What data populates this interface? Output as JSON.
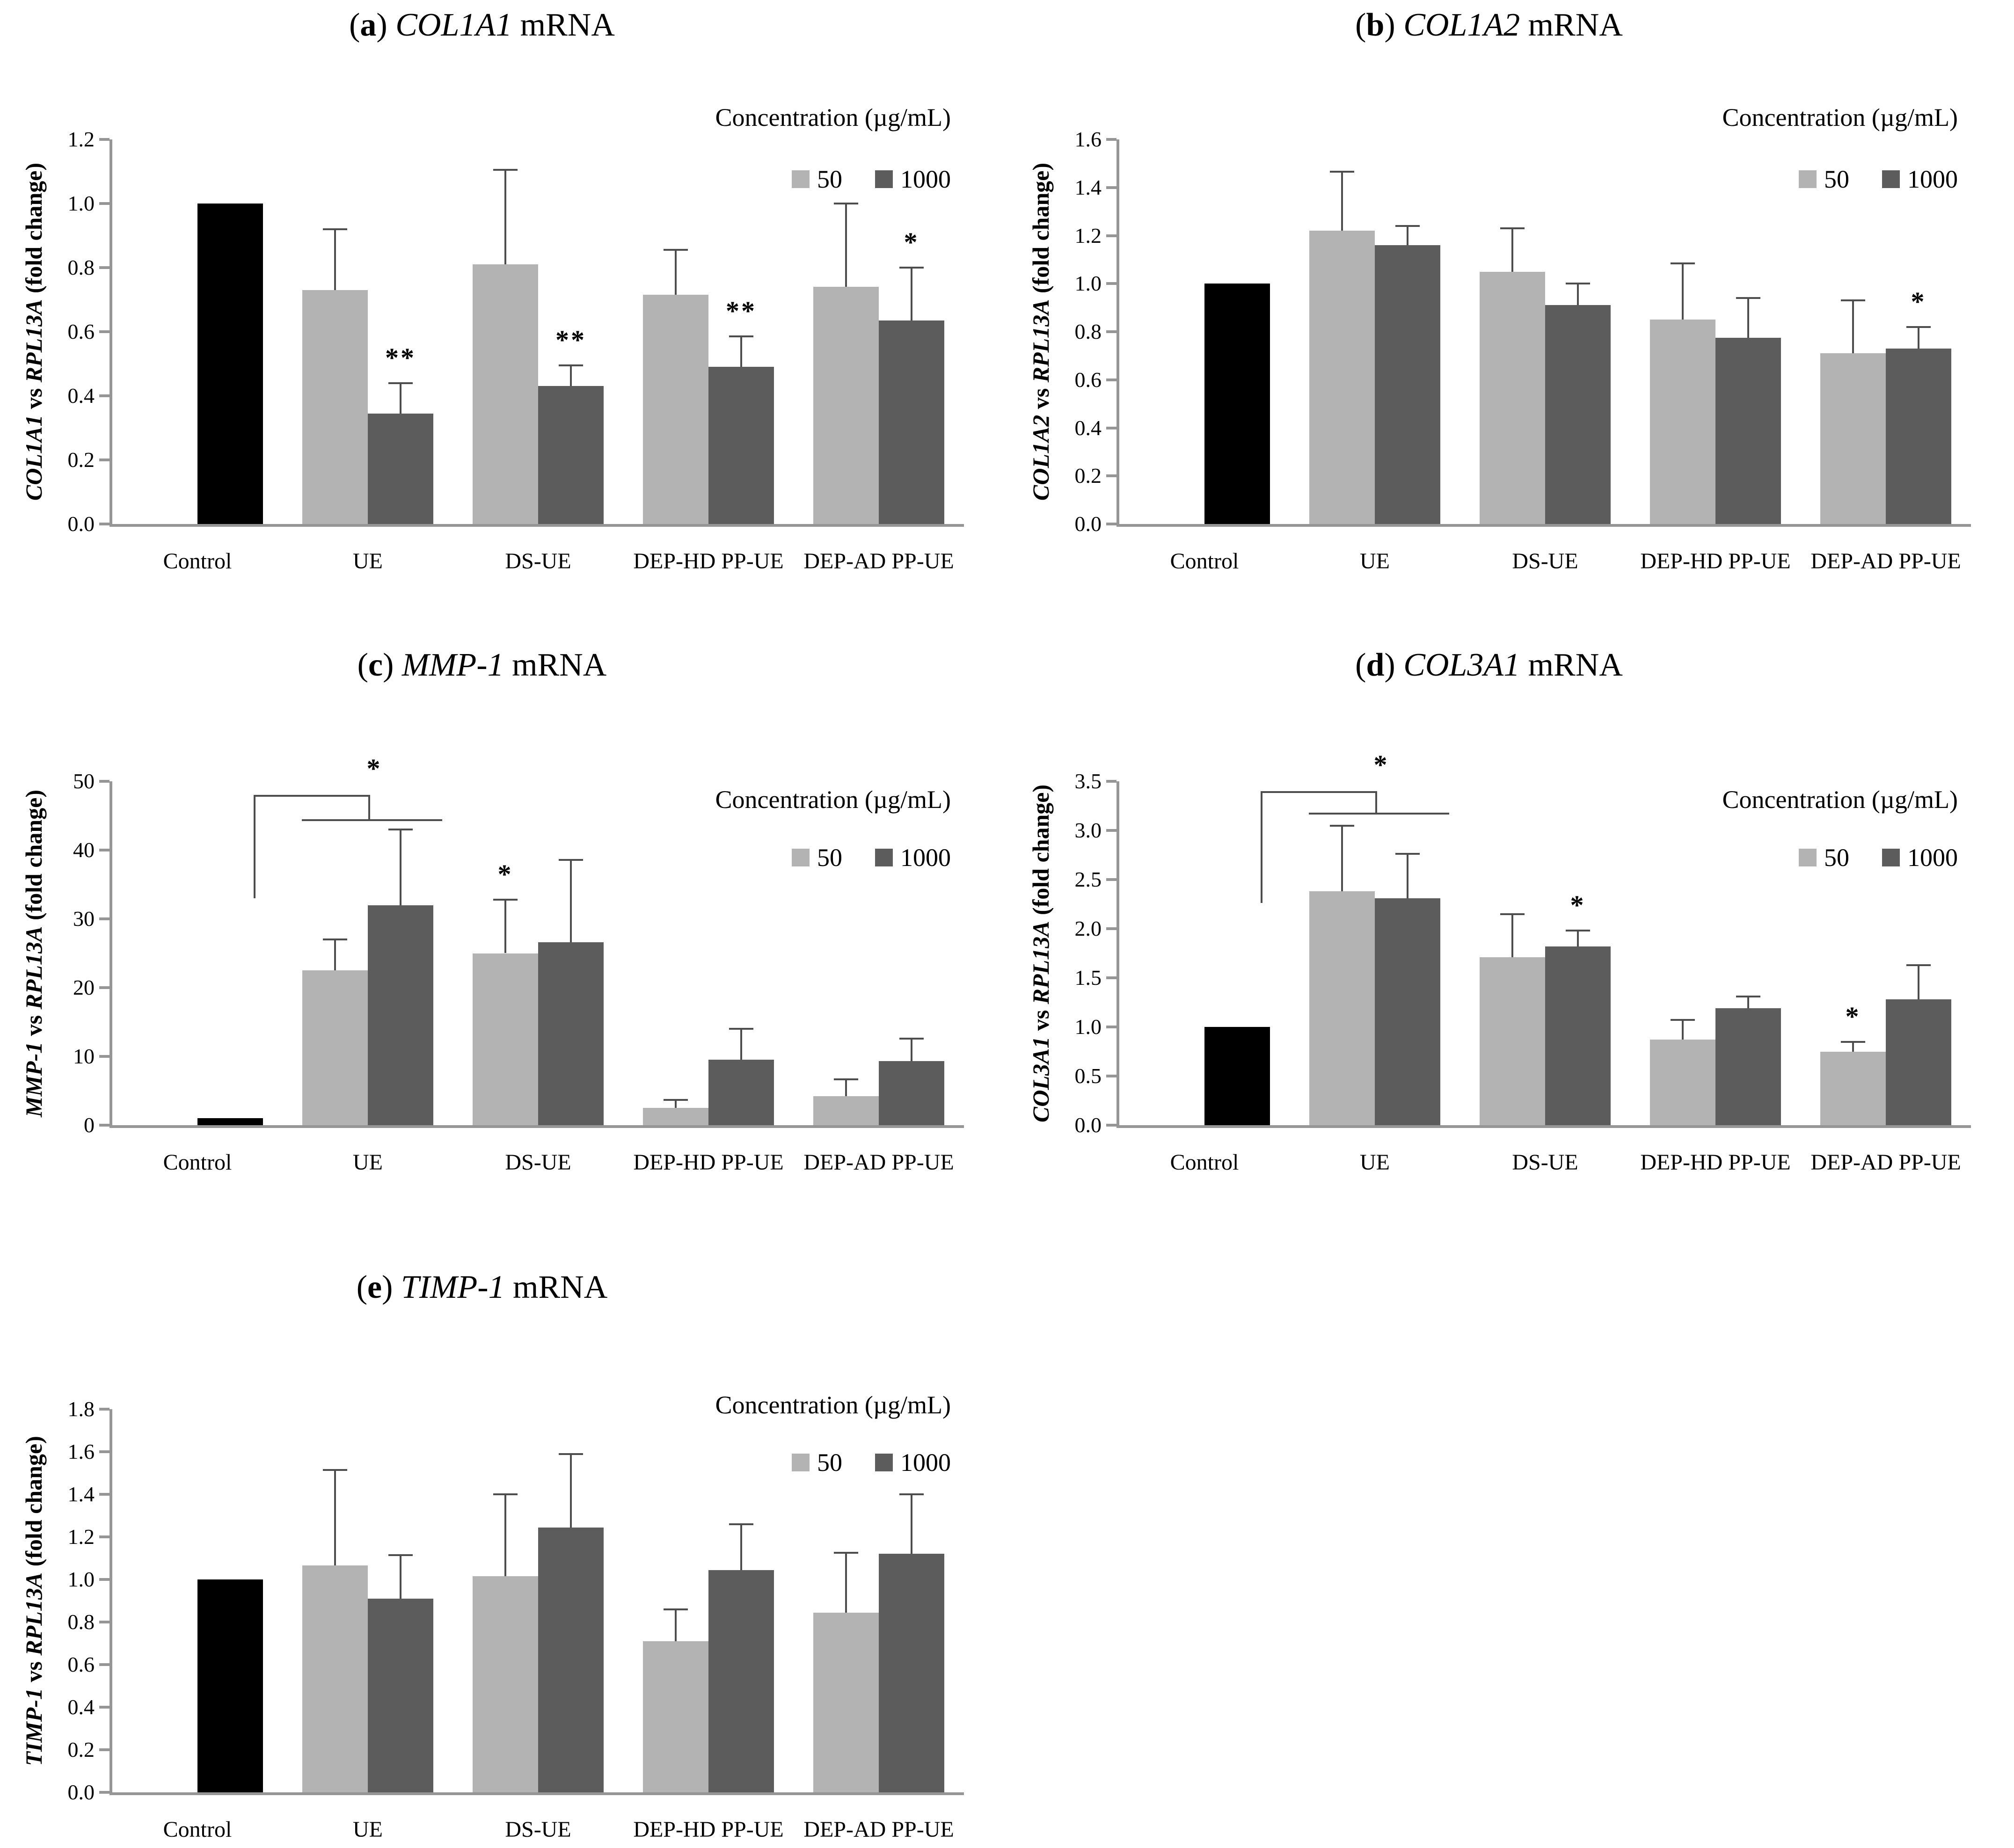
{
  "figure": {
    "background": "#ffffff",
    "legend": {
      "title": "Concentration (µg/mL)",
      "series": [
        {
          "key": "s50",
          "label": "50",
          "color": "#b3b3b3"
        },
        {
          "key": "s1000",
          "label": "1000",
          "color": "#5c5c5c"
        }
      ]
    },
    "colors": {
      "control_bar": "#000000",
      "bar_50": "#b3b3b3",
      "bar_1000": "#5c5c5c",
      "axis": "#969696",
      "error_bar": "#4d4d4d",
      "text": "#000000"
    },
    "categories": [
      "Control",
      "UE",
      "DS-UE",
      "DEP-HD PP-UE",
      "DEP-AD PP-UE"
    ]
  },
  "chart_data": [
    {
      "panel": "a",
      "type": "bar",
      "title": {
        "index": "a",
        "gene": "COL1A1",
        "suffix": "mRNA"
      },
      "ylabel": {
        "gene": "COL1A1",
        "mid": " vs ",
        "ref": "RPL13A",
        "suffix": " (fold change)"
      },
      "ylim": [
        0,
        1.2
      ],
      "ytick_step": 0.2,
      "ydecimals": 1,
      "grid": false,
      "legend_position": "top-right",
      "categories": [
        "Control",
        "UE",
        "DS-UE",
        "DEP-HD PP-UE",
        "DEP-AD PP-UE"
      ],
      "control": {
        "value": 1.0
      },
      "groups": [
        {
          "category": "UE",
          "s50": {
            "value": 0.73,
            "err": 0.19
          },
          "s1000": {
            "value": 0.345,
            "err": 0.095,
            "sig": "**"
          }
        },
        {
          "category": "DS-UE",
          "s50": {
            "value": 0.81,
            "err": 0.295
          },
          "s1000": {
            "value": 0.43,
            "err": 0.065,
            "sig": "**"
          }
        },
        {
          "category": "DEP-HD PP-UE",
          "s50": {
            "value": 0.715,
            "err": 0.14
          },
          "s1000": {
            "value": 0.49,
            "err": 0.095,
            "sig": "**"
          }
        },
        {
          "category": "DEP-AD PP-UE",
          "s50": {
            "value": 0.74,
            "err": 0.26
          },
          "s1000": {
            "value": 0.635,
            "err": 0.165,
            "sig": "*"
          }
        }
      ],
      "bracket": null
    },
    {
      "panel": "b",
      "type": "bar",
      "title": {
        "index": "b",
        "gene": "COL1A2",
        "suffix": "mRNA"
      },
      "ylabel": {
        "gene": "COL1A2",
        "mid": " vs ",
        "ref": "RPL13A",
        "suffix": " (fold change)"
      },
      "ylim": [
        0,
        1.6
      ],
      "ytick_step": 0.2,
      "ydecimals": 1,
      "grid": false,
      "legend_position": "top-right",
      "categories": [
        "Control",
        "UE",
        "DS-UE",
        "DEP-HD PP-UE",
        "DEP-AD PP-UE"
      ],
      "control": {
        "value": 1.0
      },
      "groups": [
        {
          "category": "UE",
          "s50": {
            "value": 1.22,
            "err": 0.245
          },
          "s1000": {
            "value": 1.16,
            "err": 0.08
          }
        },
        {
          "category": "DS-UE",
          "s50": {
            "value": 1.05,
            "err": 0.18
          },
          "s1000": {
            "value": 0.91,
            "err": 0.09
          }
        },
        {
          "category": "DEP-HD PP-UE",
          "s50": {
            "value": 0.85,
            "err": 0.235
          },
          "s1000": {
            "value": 0.775,
            "err": 0.165
          }
        },
        {
          "category": "DEP-AD PP-UE",
          "s50": {
            "value": 0.71,
            "err": 0.22
          },
          "s1000": {
            "value": 0.73,
            "err": 0.09,
            "sig": "*"
          }
        }
      ],
      "bracket": null
    },
    {
      "panel": "c",
      "type": "bar",
      "title": {
        "index": "c",
        "gene": "MMP-1",
        "suffix": "mRNA"
      },
      "ylabel": {
        "gene": "MMP-1",
        "mid": " vs ",
        "ref": "RPL13A",
        "suffix": " (fold change)"
      },
      "ylim": [
        0,
        50
      ],
      "ytick_step": 10,
      "ydecimals": 0,
      "grid": false,
      "legend_position": "top-right",
      "categories": [
        "Control",
        "UE",
        "DS-UE",
        "DEP-HD PP-UE",
        "DEP-AD PP-UE"
      ],
      "control": {
        "value": 1.0
      },
      "groups": [
        {
          "category": "UE",
          "s50": {
            "value": 22.5,
            "err": 4.5
          },
          "s1000": {
            "value": 32.0,
            "err": 11.0
          }
        },
        {
          "category": "DS-UE",
          "s50": {
            "value": 25.0,
            "err": 7.8,
            "sig": "*"
          },
          "s1000": {
            "value": 26.6,
            "err": 12.0
          }
        },
        {
          "category": "DEP-HD PP-UE",
          "s50": {
            "value": 2.5,
            "err": 1.2
          },
          "s1000": {
            "value": 9.5,
            "err": 4.5
          }
        },
        {
          "category": "DEP-AD PP-UE",
          "s50": {
            "value": 4.2,
            "err": 2.5
          },
          "s1000": {
            "value": 9.3,
            "err": 3.3
          }
        }
      ],
      "bracket": {
        "compares": "Control vs UE",
        "y_top": 48,
        "y_ledge": 44.5,
        "y_bottom": 33,
        "sig": "*"
      }
    },
    {
      "panel": "d",
      "type": "bar",
      "title": {
        "index": "d",
        "gene": "COL3A1",
        "suffix": "mRNA"
      },
      "ylabel": {
        "gene": "COL3A1",
        "mid": " vs ",
        "ref": "RPL13A",
        "suffix": " (fold change)"
      },
      "ylim": [
        0,
        3.5
      ],
      "ytick_step": 0.5,
      "ydecimals": 1,
      "grid": false,
      "legend_position": "top-right",
      "categories": [
        "Control",
        "UE",
        "DS-UE",
        "DEP-HD PP-UE",
        "DEP-AD PP-UE"
      ],
      "control": {
        "value": 1.0
      },
      "groups": [
        {
          "category": "UE",
          "s50": {
            "value": 2.38,
            "err": 0.67
          },
          "s1000": {
            "value": 2.31,
            "err": 0.45
          }
        },
        {
          "category": "DS-UE",
          "s50": {
            "value": 1.71,
            "err": 0.44
          },
          "s1000": {
            "value": 1.82,
            "err": 0.16,
            "sig": "*"
          }
        },
        {
          "category": "DEP-HD PP-UE",
          "s50": {
            "value": 0.87,
            "err": 0.2
          },
          "s1000": {
            "value": 1.19,
            "err": 0.12
          }
        },
        {
          "category": "DEP-AD PP-UE",
          "s50": {
            "value": 0.75,
            "err": 0.1,
            "sig": "*"
          },
          "s1000": {
            "value": 1.28,
            "err": 0.35
          }
        }
      ],
      "bracket": {
        "compares": "Control vs UE",
        "y_top": 3.4,
        "y_ledge": 3.18,
        "y_bottom": 2.26,
        "sig": "*"
      }
    },
    {
      "panel": "e",
      "type": "bar",
      "title": {
        "index": "e",
        "gene": "TIMP-1",
        "suffix": "mRNA"
      },
      "ylabel": {
        "gene": "TIMP-1",
        "mid": " vs ",
        "ref": "RPL13A",
        "suffix": " (fold change)"
      },
      "ylim": [
        0,
        1.8
      ],
      "ytick_step": 0.2,
      "ydecimals": 1,
      "grid": false,
      "legend_position": "top-right",
      "categories": [
        "Control",
        "UE",
        "DS-UE",
        "DEP-HD PP-UE",
        "DEP-AD PP-UE"
      ],
      "control": {
        "value": 1.0
      },
      "groups": [
        {
          "category": "UE",
          "s50": {
            "value": 1.065,
            "err": 0.45
          },
          "s1000": {
            "value": 0.91,
            "err": 0.205
          }
        },
        {
          "category": "DS-UE",
          "s50": {
            "value": 1.015,
            "err": 0.385
          },
          "s1000": {
            "value": 1.245,
            "err": 0.345
          }
        },
        {
          "category": "DEP-HD PP-UE",
          "s50": {
            "value": 0.71,
            "err": 0.15
          },
          "s1000": {
            "value": 1.045,
            "err": 0.215
          }
        },
        {
          "category": "DEP-AD PP-UE",
          "s50": {
            "value": 0.845,
            "err": 0.28
          },
          "s1000": {
            "value": 1.12,
            "err": 0.28
          }
        }
      ],
      "bracket": null
    }
  ]
}
